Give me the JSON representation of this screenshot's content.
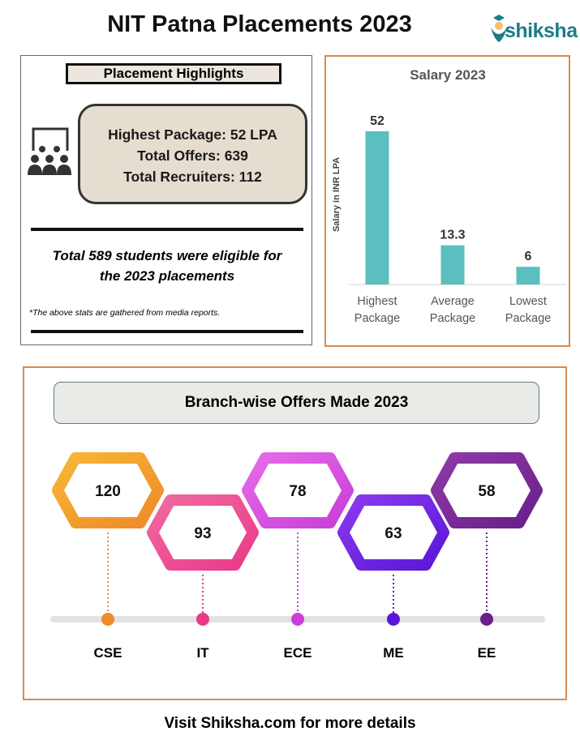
{
  "title": "NIT Patna Placements 2023",
  "logo": {
    "text": "shiksha",
    "color": "#1b7d86"
  },
  "highlights": {
    "heading": "Placement Highlights",
    "icon": "audience-presentation-icon",
    "stats": [
      "Highest Package: 52 LPA",
      "Total Offers: 639",
      "Total Recruiters: 112"
    ],
    "eligible_line1": "Total 589 students were eligible for",
    "eligible_line2": "the 2023 placements",
    "footnote": "*The above stats are gathered from media reports."
  },
  "chart_data": {
    "type": "bar",
    "title": "Salary 2023",
    "ylabel": "Salary in INR LPA",
    "xlabel": "",
    "categories": [
      [
        "Highest",
        "Package"
      ],
      [
        "Average",
        "Package"
      ],
      [
        "Lowest",
        "Package"
      ]
    ],
    "values": [
      52,
      13.3,
      6
    ],
    "data_labels": [
      "52",
      "13.3",
      "6"
    ],
    "ylim": [
      0,
      52
    ],
    "grid": false,
    "bar_color": "#5bbfbf"
  },
  "branches": {
    "heading": "Branch-wise Offers Made 2023",
    "items": [
      {
        "name": "CSE",
        "offers": "120",
        "color1": "#f7b733",
        "color2": "#ee8a2a"
      },
      {
        "name": "IT",
        "offers": "93",
        "color1": "#f06aa0",
        "color2": "#ea3a8a"
      },
      {
        "name": "ECE",
        "offers": "78",
        "color1": "#e56be8",
        "color2": "#c93fd8"
      },
      {
        "name": "ME",
        "offers": "63",
        "color1": "#8a3af0",
        "color2": "#5a16d8"
      },
      {
        "name": "EE",
        "offers": "58",
        "color1": "#8e3aa8",
        "color2": "#6a1f8a"
      }
    ]
  },
  "footer": "Visit Shiksha.com for more details"
}
